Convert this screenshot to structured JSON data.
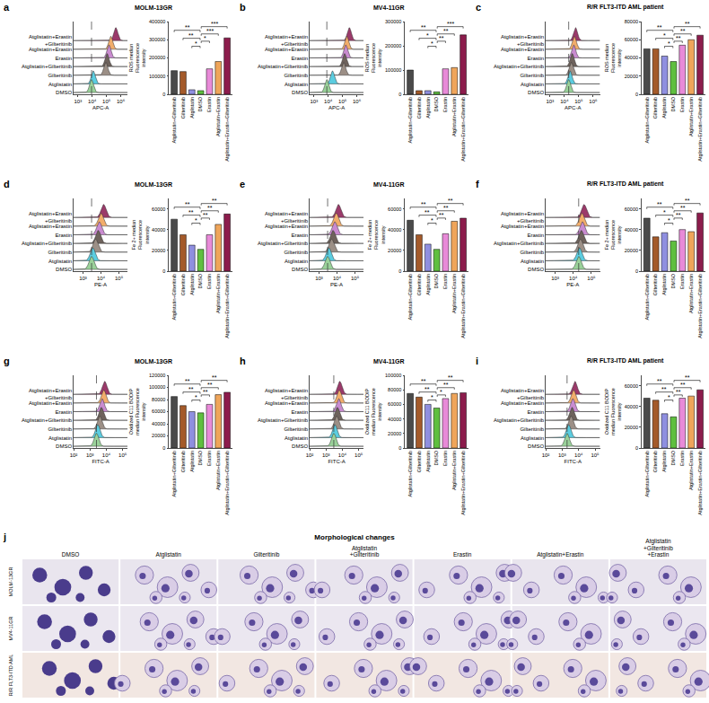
{
  "histogram_conditions": [
    {
      "name": "DMSO",
      "color": "#9ad29a"
    },
    {
      "name": "Atglistatin",
      "color": "#5bcde0"
    },
    {
      "name": "Gilteritinib",
      "color": "#9c8f86"
    },
    {
      "name": "Atglistatin+Gilteritinib",
      "color": "#6e625c"
    },
    {
      "name": "Erastin",
      "color": "#c98bd0"
    },
    {
      "name": "Atglistatin+Erastin",
      "color": "#f2ad6b"
    },
    {
      "name": "Atglistatin+Erastin+Gilteritinib",
      "color": "#9b3a6a"
    }
  ],
  "bar_categories": [
    "Atglistatin+Gilteritinib",
    "Gilteritinib",
    "Atglistatin",
    "DMSO",
    "Erastin",
    "Atglistatin+Erastin",
    "Atglistatin+Erastin+Gilteritinib"
  ],
  "bar_colors": [
    "#4a4a4a",
    "#a45a2a",
    "#8f8fe0",
    "#5fbf3f",
    "#e88ad8",
    "#efa55a",
    "#8c1c4c"
  ],
  "chart_data": [
    {
      "panel": "a",
      "title": "MOLM-13GR",
      "type": "bar",
      "y_label": "ROS median Fluorescence intensity",
      "histogram": {
        "type": "area",
        "x_label": "APC-A",
        "log": "x",
        "xlim": [
          500,
          3000000
        ],
        "xticks": [
          {
            "value": 1000,
            "label": "10³"
          },
          {
            "value": 10000,
            "label": "10⁴"
          },
          {
            "value": 100000,
            "label": "10⁵"
          },
          {
            "value": 1000000,
            "label": "10⁶"
          }
        ],
        "peaks": [
          9000,
          12000,
          90000,
          110000,
          150000,
          200000,
          450000
        ]
      },
      "values": [
        130000,
        125000,
        25000,
        20000,
        140000,
        180000,
        310000
      ],
      "ylim": [
        0,
        400000
      ],
      "yticks": [
        0,
        100000,
        200000,
        300000,
        400000
      ],
      "comparisons": [
        {
          "pair": [
            0,
            3
          ],
          "label": "**"
        },
        {
          "pair": [
            1,
            3
          ],
          "label": "**"
        },
        {
          "pair": [
            2,
            3
          ],
          "label": "*"
        },
        {
          "pair": [
            3,
            4
          ],
          "label": "*"
        },
        {
          "pair": [
            3,
            5
          ],
          "label": "***"
        },
        {
          "pair": [
            3,
            6
          ],
          "label": "***"
        }
      ]
    },
    {
      "panel": "b",
      "title": "MV4-11GR",
      "type": "bar",
      "y_label": "ROS median Fluorescence intensity",
      "histogram": {
        "type": "area",
        "x_label": "APC-A",
        "log": "x",
        "xlim": [
          500,
          3000000
        ],
        "xticks": [
          {
            "value": 1000,
            "label": "10³"
          },
          {
            "value": 10000,
            "label": "10⁴"
          },
          {
            "value": 100000,
            "label": "10⁵"
          },
          {
            "value": 1000000,
            "label": "10⁶"
          }
        ],
        "peaks": [
          8000,
          20000,
          120000,
          140000,
          170000,
          200000,
          300000
        ]
      },
      "values": [
        100000,
        15000,
        15000,
        10000,
        105000,
        110000,
        245000
      ],
      "ylim": [
        0,
        300000
      ],
      "yticks": [
        0,
        100000,
        200000,
        300000
      ],
      "comparisons": [
        {
          "pair": [
            0,
            3
          ],
          "label": "**"
        },
        {
          "pair": [
            1,
            3
          ],
          "label": "*"
        },
        {
          "pair": [
            2,
            3
          ],
          "label": "*"
        },
        {
          "pair": [
            3,
            4
          ],
          "label": "**"
        },
        {
          "pair": [
            3,
            5
          ],
          "label": "**"
        },
        {
          "pair": [
            3,
            6
          ],
          "label": "***"
        }
      ]
    },
    {
      "panel": "c",
      "title": "R/R FLT3-ITD AML patient",
      "type": "bar",
      "y_label": "ROS median Fluorescence intensity",
      "histogram": {
        "type": "area",
        "x_label": "APC-A",
        "log": "x",
        "xlim": [
          500,
          3000000
        ],
        "xticks": [
          {
            "value": 1000,
            "label": "10³"
          },
          {
            "value": 10000,
            "label": "10⁴"
          },
          {
            "value": 100000,
            "label": "10⁵"
          },
          {
            "value": 1000000,
            "label": "10⁶"
          }
        ],
        "peaks": [
          20000,
          25000,
          30000,
          35000,
          45000,
          50000,
          60000
        ]
      },
      "values": [
        50000,
        50000,
        42000,
        36000,
        54000,
        60000,
        65000
      ],
      "ylim": [
        0,
        80000
      ],
      "yticks": [
        0,
        20000,
        40000,
        60000,
        80000
      ],
      "comparisons": [
        {
          "pair": [
            0,
            3
          ],
          "label": "**"
        },
        {
          "pair": [
            1,
            3
          ],
          "label": "*"
        },
        {
          "pair": [
            2,
            3
          ],
          "label": "*"
        },
        {
          "pair": [
            3,
            4
          ],
          "label": "**"
        },
        {
          "pair": [
            3,
            5
          ],
          "label": "**"
        },
        {
          "pair": [
            3,
            6
          ],
          "label": "**"
        }
      ]
    },
    {
      "panel": "d",
      "title": "MOLM-13GR",
      "type": "bar",
      "y_label": "Fe 2+ median Fluorescence intensity",
      "histogram": {
        "type": "area",
        "x_label": "PE-A",
        "log": "x",
        "xlim": [
          300,
          300000
        ],
        "xticks": [
          {
            "value": 1000,
            "label": "10³"
          },
          {
            "value": 10000,
            "label": "10⁴"
          },
          {
            "value": 100000,
            "label": "10⁵"
          }
        ],
        "peaks": [
          3000,
          3500,
          5000,
          7000,
          8000,
          10000,
          14000
        ]
      },
      "values": [
        50000,
        35000,
        25000,
        21000,
        35000,
        45000,
        55000
      ],
      "ylim": [
        0,
        70000
      ],
      "yticks": [
        0,
        20000,
        40000,
        60000
      ],
      "comparisons": [
        {
          "pair": [
            0,
            3
          ],
          "label": "**"
        },
        {
          "pair": [
            1,
            3
          ],
          "label": "**"
        },
        {
          "pair": [
            2,
            3
          ],
          "label": "*"
        },
        {
          "pair": [
            3,
            4
          ],
          "label": "**"
        },
        {
          "pair": [
            3,
            5
          ],
          "label": "**"
        },
        {
          "pair": [
            3,
            6
          ],
          "label": "**"
        }
      ]
    },
    {
      "panel": "e",
      "title": "MV4-11GR",
      "type": "bar",
      "y_label": "Fe 2+ median Fluorescence intensity",
      "histogram": {
        "type": "area",
        "x_label": "PE-A",
        "log": "x",
        "xlim": [
          300,
          300000
        ],
        "xticks": [
          {
            "value": 1000,
            "label": "10³"
          },
          {
            "value": 10000,
            "label": "10⁴"
          },
          {
            "value": 100000,
            "label": "10⁵"
          }
        ],
        "peaks": [
          3000,
          3500,
          5000,
          6000,
          7500,
          9000,
          12000
        ]
      },
      "values": [
        49000,
        35000,
        26000,
        21000,
        36000,
        48000,
        51000
      ],
      "ylim": [
        0,
        70000
      ],
      "yticks": [
        0,
        20000,
        40000,
        60000
      ],
      "comparisons": [
        {
          "pair": [
            0,
            3
          ],
          "label": "**"
        },
        {
          "pair": [
            1,
            3
          ],
          "label": "**"
        },
        {
          "pair": [
            2,
            3
          ],
          "label": "*"
        },
        {
          "pair": [
            3,
            4
          ],
          "label": "**"
        },
        {
          "pair": [
            3,
            5
          ],
          "label": "**"
        },
        {
          "pair": [
            3,
            6
          ],
          "label": "**"
        }
      ]
    },
    {
      "panel": "f",
      "title": "R/R FLT3-ITD AML patient",
      "type": "bar",
      "y_label": "Fe 2+ median Fluorescence intensity",
      "histogram": {
        "type": "area",
        "x_label": "PE-A",
        "log": "x",
        "xlim": [
          300,
          300000
        ],
        "xticks": [
          {
            "value": 1000,
            "label": "10³"
          },
          {
            "value": 10000,
            "label": "10⁴"
          },
          {
            "value": 100000,
            "label": "10⁵"
          }
        ],
        "peaks": [
          20000,
          22000,
          25000,
          28000,
          32000,
          30000,
          40000
        ]
      },
      "values": [
        51000,
        33000,
        37000,
        29000,
        40000,
        38000,
        56000
      ],
      "ylim": [
        0,
        70000
      ],
      "yticks": [
        0,
        20000,
        40000,
        60000
      ],
      "comparisons": [
        {
          "pair": [
            0,
            3
          ],
          "label": "**"
        },
        {
          "pair": [
            1,
            3
          ],
          "label": "*"
        },
        {
          "pair": [
            2,
            3
          ],
          "label": "*"
        },
        {
          "pair": [
            3,
            4
          ],
          "label": "**"
        },
        {
          "pair": [
            3,
            5
          ],
          "label": "**"
        },
        {
          "pair": [
            3,
            6
          ],
          "label": "**"
        }
      ]
    },
    {
      "panel": "g",
      "title": "MOLM-13GR",
      "type": "bar",
      "y_label": "Oxidized C11 BODIP median Fluorescence intensity",
      "histogram": {
        "type": "area",
        "x_label": "FITC-A",
        "log": "x",
        "xlim": [
          100,
          200000
        ],
        "xticks": [
          {
            "value": 100,
            "label": "10²"
          },
          {
            "value": 1000,
            "label": "10³"
          },
          {
            "value": 10000,
            "label": "10⁴"
          },
          {
            "value": 100000,
            "label": "10⁵"
          }
        ],
        "peaks": [
          2500,
          3000,
          4000,
          5000,
          5500,
          7000,
          8000
        ]
      },
      "values": [
        85000,
        70000,
        60000,
        58000,
        72000,
        88000,
        92000
      ],
      "ylim": [
        0,
        120000
      ],
      "yticks": [
        0,
        20000,
        40000,
        60000,
        80000,
        100000,
        120000
      ],
      "comparisons": [
        {
          "pair": [
            0,
            3
          ],
          "label": "**"
        },
        {
          "pair": [
            1,
            3
          ],
          "label": "**"
        },
        {
          "pair": [
            2,
            3
          ],
          "label": "*"
        },
        {
          "pair": [
            3,
            4
          ],
          "label": "**"
        },
        {
          "pair": [
            3,
            5
          ],
          "label": "**"
        },
        {
          "pair": [
            3,
            6
          ],
          "label": "**"
        }
      ]
    },
    {
      "panel": "h",
      "title": "MV4-11GR",
      "type": "bar",
      "y_label": "Oxidized C11 BODIP median Fluorescence intensity",
      "histogram": {
        "type": "area",
        "x_label": "FITC-A",
        "log": "x",
        "xlim": [
          100,
          200000
        ],
        "xticks": [
          {
            "value": 100,
            "label": "10²"
          },
          {
            "value": 1000,
            "label": "10³"
          },
          {
            "value": 10000,
            "label": "10⁴"
          },
          {
            "value": 100000,
            "label": "10⁵"
          }
        ],
        "peaks": [
          3000,
          3500,
          4500,
          5000,
          6000,
          6500,
          7000
        ]
      },
      "values": [
        75000,
        70000,
        60000,
        55000,
        68000,
        75000,
        76000
      ],
      "ylim": [
        0,
        100000
      ],
      "yticks": [
        0,
        20000,
        40000,
        60000,
        80000,
        100000
      ],
      "comparisons": [
        {
          "pair": [
            0,
            3
          ],
          "label": "**"
        },
        {
          "pair": [
            1,
            3
          ],
          "label": "**"
        },
        {
          "pair": [
            2,
            3
          ],
          "label": "*"
        },
        {
          "pair": [
            3,
            4
          ],
          "label": "*"
        },
        {
          "pair": [
            3,
            5
          ],
          "label": "**"
        },
        {
          "pair": [
            3,
            6
          ],
          "label": "**"
        }
      ]
    },
    {
      "panel": "i",
      "title": "R/R FLT3-ITD AML patient",
      "type": "bar",
      "y_label": "Oxidized C11 BODIP median Fluorescence intensity",
      "histogram": {
        "type": "area",
        "x_label": "FITC-A",
        "log": "x",
        "xlim": [
          100,
          200000
        ],
        "xticks": [
          {
            "value": 100,
            "label": "10²"
          },
          {
            "value": 1000,
            "label": "10³"
          },
          {
            "value": 10000,
            "label": "10⁴"
          },
          {
            "value": 100000,
            "label": "10⁵"
          }
        ],
        "peaks": [
          2000,
          2500,
          3500,
          4000,
          4500,
          5000,
          6000
        ]
      },
      "values": [
        48000,
        46000,
        33000,
        30000,
        48000,
        50000,
        56000
      ],
      "ylim": [
        0,
        70000
      ],
      "yticks": [
        0,
        20000,
        40000,
        60000
      ],
      "comparisons": [
        {
          "pair": [
            0,
            3
          ],
          "label": "**"
        },
        {
          "pair": [
            1,
            3
          ],
          "label": "**"
        },
        {
          "pair": [
            2,
            3
          ],
          "label": "*"
        },
        {
          "pair": [
            3,
            4
          ],
          "label": "**"
        },
        {
          "pair": [
            3,
            5
          ],
          "label": "**"
        },
        {
          "pair": [
            3,
            6
          ],
          "label": "**"
        }
      ]
    }
  ],
  "morphology": {
    "panel": "j",
    "title": "Morphological changes",
    "columns": [
      "DMSO",
      "Atglistatin",
      "Gilteritinib",
      "Atglistatin+Gilteritinib",
      "Erastin",
      "Atglistatin+Erastin",
      "Atglistatin+Gilteritinib+Erastin"
    ],
    "rows": [
      "MOLM-13GR",
      "MV4-11GR",
      "R/R FLT3-ITD AML"
    ]
  }
}
